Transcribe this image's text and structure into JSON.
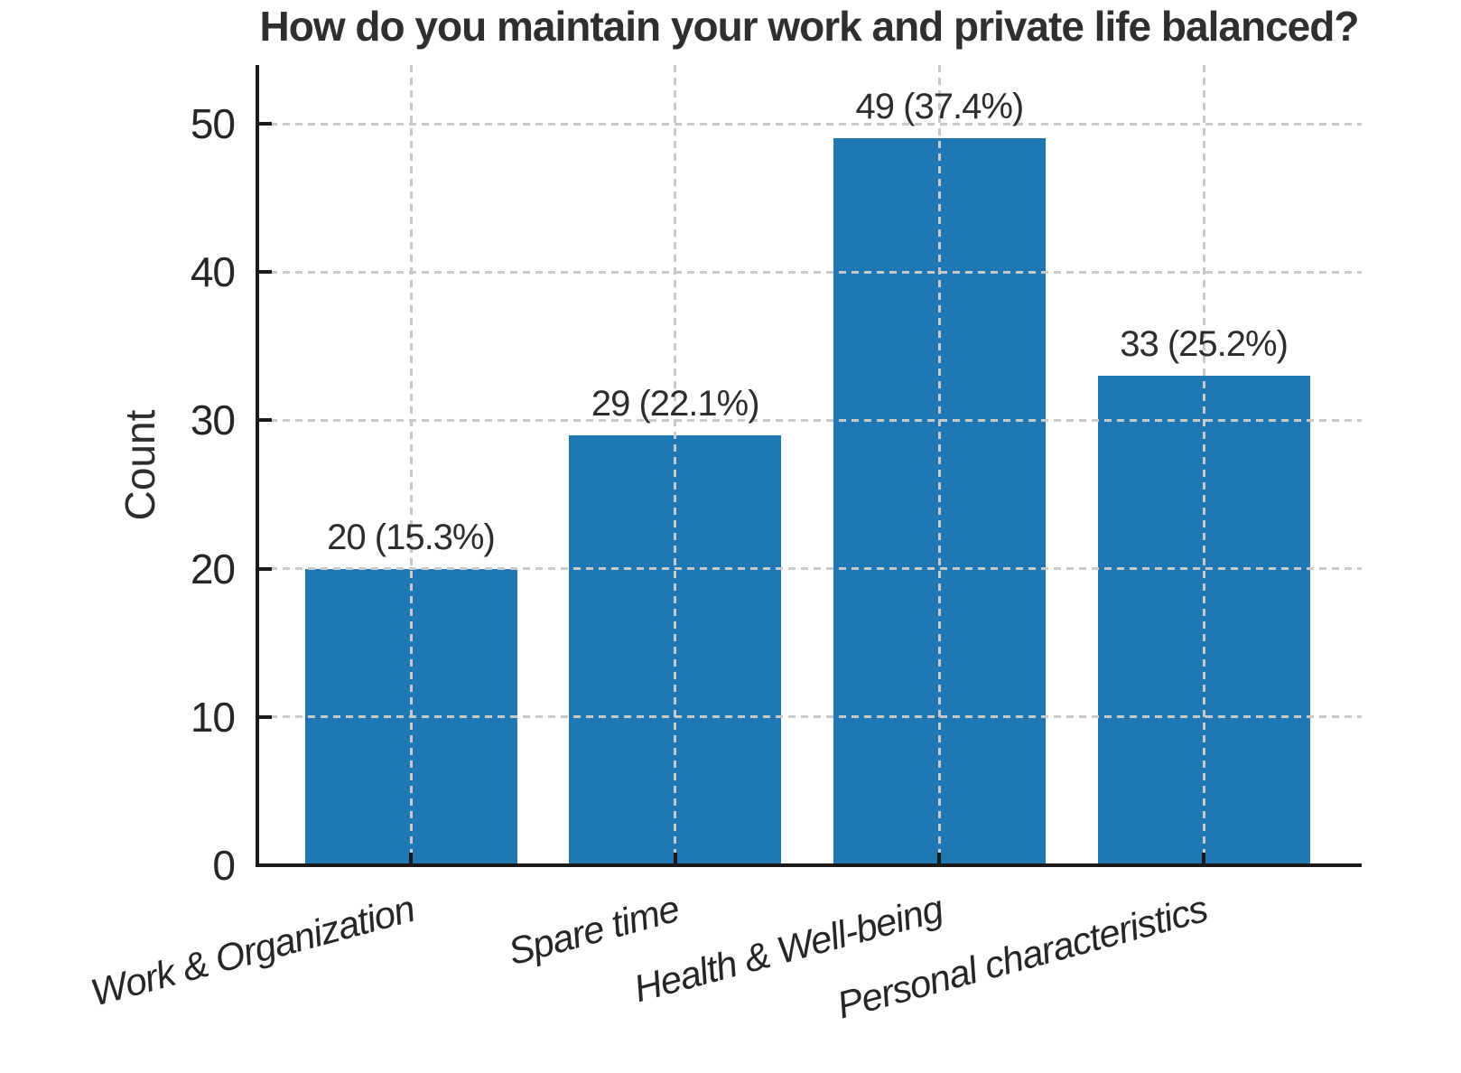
{
  "title": "How do you maintain your work and private life balanced?",
  "chart_data": {
    "type": "bar",
    "title": "How do you maintain your work and private life balanced?",
    "categories": [
      "Work & Organization",
      "Spare time",
      "Health & Well-being",
      "Personal characteristics"
    ],
    "values": [
      20,
      29,
      49,
      33
    ],
    "bar_labels": [
      "20 (15.3%)",
      "29 (22.1%)",
      "49 (37.4%)",
      "33 (25.2%)"
    ],
    "xlabel": "",
    "ylabel": "Count",
    "yticks": [
      0,
      10,
      20,
      30,
      40,
      50
    ],
    "ylim": [
      0,
      54
    ],
    "grid": "dashed, both axes, drawn over bars",
    "x_tick_rotation_deg": 15,
    "x_tick_style": "italic",
    "legend": "none",
    "colors": {
      "bar": "#1f77b4",
      "grid": "#c9c9c9",
      "spine": "#1a1a1a",
      "text": "#2d2d2d"
    }
  }
}
